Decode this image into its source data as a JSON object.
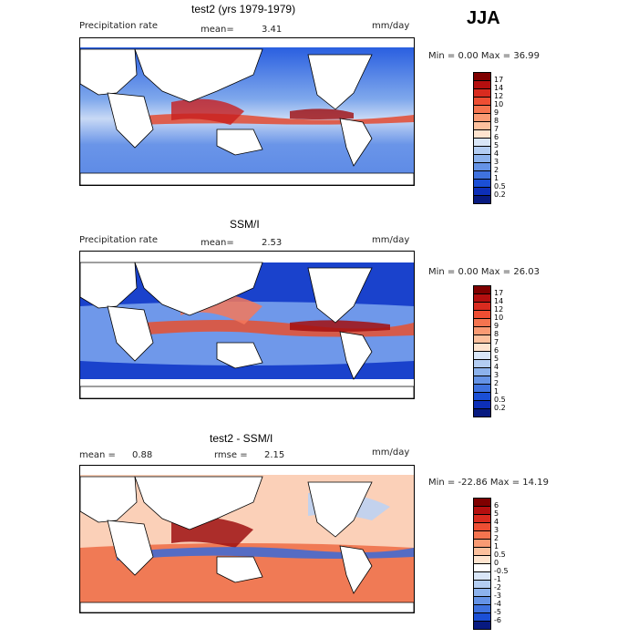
{
  "season": "JJA",
  "panels": [
    {
      "title": "test2 (yrs 1979-1979)",
      "left_label": "Precipitation rate",
      "stat1_label": "mean=",
      "stat1_value": "3.41",
      "stat2_label": "",
      "stat2_value": "",
      "units": "mm/day",
      "range_text": "Min =    0.00 Max =   36.99",
      "colorbar": {
        "labels": [
          "17",
          "14",
          "12",
          "10",
          "9",
          "8",
          "7",
          "6",
          "5",
          "4",
          "3",
          "2",
          "1",
          "0.5",
          "0.2"
        ],
        "colors": [
          "#7f0000",
          "#b40f0f",
          "#d92b1f",
          "#ee4e33",
          "#f5744f",
          "#f99a73",
          "#fcc09d",
          "#fee4cf",
          "#d9e6f7",
          "#b3cdf2",
          "#8cb2ec",
          "#6593e6",
          "#3f72df",
          "#1b4fd6",
          "#0d2fb8",
          "#081a80"
        ]
      }
    },
    {
      "title": "SSM/I",
      "left_label": "Precipitation rate",
      "stat1_label": "mean=",
      "stat1_value": "2.53",
      "stat2_label": "",
      "stat2_value": "",
      "units": "mm/day",
      "range_text": "Min =    0.00 Max =   26.03",
      "colorbar": {
        "labels": [
          "17",
          "14",
          "12",
          "10",
          "9",
          "8",
          "7",
          "6",
          "5",
          "4",
          "3",
          "2",
          "1",
          "0.5",
          "0.2"
        ],
        "colors": [
          "#7f0000",
          "#b40f0f",
          "#d92b1f",
          "#ee4e33",
          "#f5744f",
          "#f99a73",
          "#fcc09d",
          "#fee4cf",
          "#d9e6f7",
          "#b3cdf2",
          "#8cb2ec",
          "#6593e6",
          "#3f72df",
          "#1b4fd6",
          "#0d2fb8",
          "#081a80"
        ]
      }
    },
    {
      "title": "test2 - SSM/I",
      "left_label": "",
      "stat1_label": "mean =",
      "stat1_value": "0.88",
      "stat2_label": "rmse =",
      "stat2_value": "2.15",
      "units": "mm/day",
      "range_text": "Min =  -22.86 Max =   14.19",
      "colorbar": {
        "labels": [
          "6",
          "5",
          "4",
          "3",
          "2",
          "1",
          "0.5",
          "0",
          "-0.5",
          "-1",
          "-2",
          "-3",
          "-4",
          "-5",
          "-6"
        ],
        "colors": [
          "#7f0000",
          "#b40f0f",
          "#d92b1f",
          "#ee4e33",
          "#f5744f",
          "#f99a73",
          "#fcc09d",
          "#fee4cf",
          "#ffffff",
          "#d9e6f7",
          "#b3cdf2",
          "#8cb2ec",
          "#6593e6",
          "#3f72df",
          "#1b4fd6",
          "#081a80"
        ]
      }
    }
  ]
}
